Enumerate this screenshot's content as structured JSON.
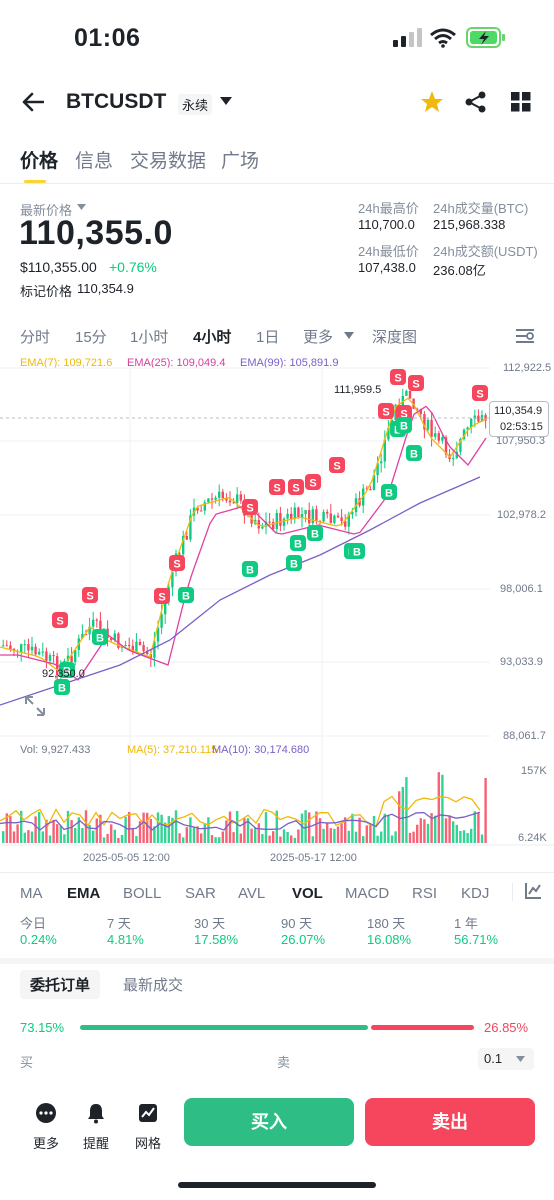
{
  "status": {
    "time": "01:06"
  },
  "header": {
    "symbol": "BTCUSDT",
    "badge": "永续"
  },
  "tabs": [
    "价格",
    "信息",
    "交易数据",
    "广场"
  ],
  "price": {
    "latest_label": "最新价格",
    "latest": "110,355.0",
    "usd": "$110,355.00",
    "change": "+0.76%",
    "mark_label": "标记价格",
    "mark": "110,354.9",
    "stats": [
      {
        "label": "24h最高价",
        "value": "110,700.0"
      },
      {
        "label": "24h成交量(BTC)",
        "value": "215,968.338"
      },
      {
        "label": "24h最低价",
        "value": "107,438.0"
      },
      {
        "label": "24h成交额(USDT)",
        "value": "236.08亿"
      }
    ]
  },
  "timeframes": [
    "分时",
    "15分",
    "1小时",
    "4小时",
    "1日",
    "更多",
    "深度图"
  ],
  "chart": {
    "ema7": "EMA(7): 109,721.6",
    "ema25": "EMA(25): 109,049.4",
    "ema99": "EMA(99): 105,891.9",
    "y_ticks": [
      "112,922.5",
      "107,950.3",
      "102,978.2",
      "98,006.1",
      "93,033.9",
      "88,061.7"
    ],
    "high_label": "111,959.5",
    "low_label": "92,350.0",
    "current_price": "110,354.9",
    "countdown": "02:53:15",
    "vol": "Vol: 9,927.433",
    "ma5": "MA(5): 37,210.115",
    "ma10": "MA(10): 30,174.680",
    "vol_ticks": [
      "157K",
      "6.24K"
    ],
    "x_ticks": [
      "2025-05-05 12:00",
      "2025-05-17 12:00"
    ],
    "colors": {
      "up": "#0ecb81",
      "down": "#f6465d",
      "ema7": "#f0b90b",
      "ema25": "#e040a0",
      "ema99": "#7b5fc9"
    }
  },
  "indicators": [
    "MA",
    "EMA",
    "BOLL",
    "SAR",
    "AVL",
    "VOL",
    "MACD",
    "RSI",
    "KDJ"
  ],
  "performance": [
    {
      "label": "今日",
      "value": "0.24%"
    },
    {
      "label": "7 天",
      "value": "4.81%"
    },
    {
      "label": "30 天",
      "value": "17.58%"
    },
    {
      "label": "90 天",
      "value": "26.07%"
    },
    {
      "label": "180 天",
      "value": "16.08%"
    },
    {
      "label": "1 年",
      "value": "56.71%"
    }
  ],
  "orderbook": {
    "tabs": [
      "委托订单",
      "最新成交"
    ],
    "buy_pct": "73.15%",
    "sell_pct": "26.85%",
    "buy_ratio": 0.7315,
    "buy_label": "买",
    "sell_label": "卖",
    "precision": "0.1"
  },
  "bottom": {
    "nav": [
      "更多",
      "提醒",
      "网格"
    ],
    "buy": "买入",
    "sell": "卖出"
  }
}
